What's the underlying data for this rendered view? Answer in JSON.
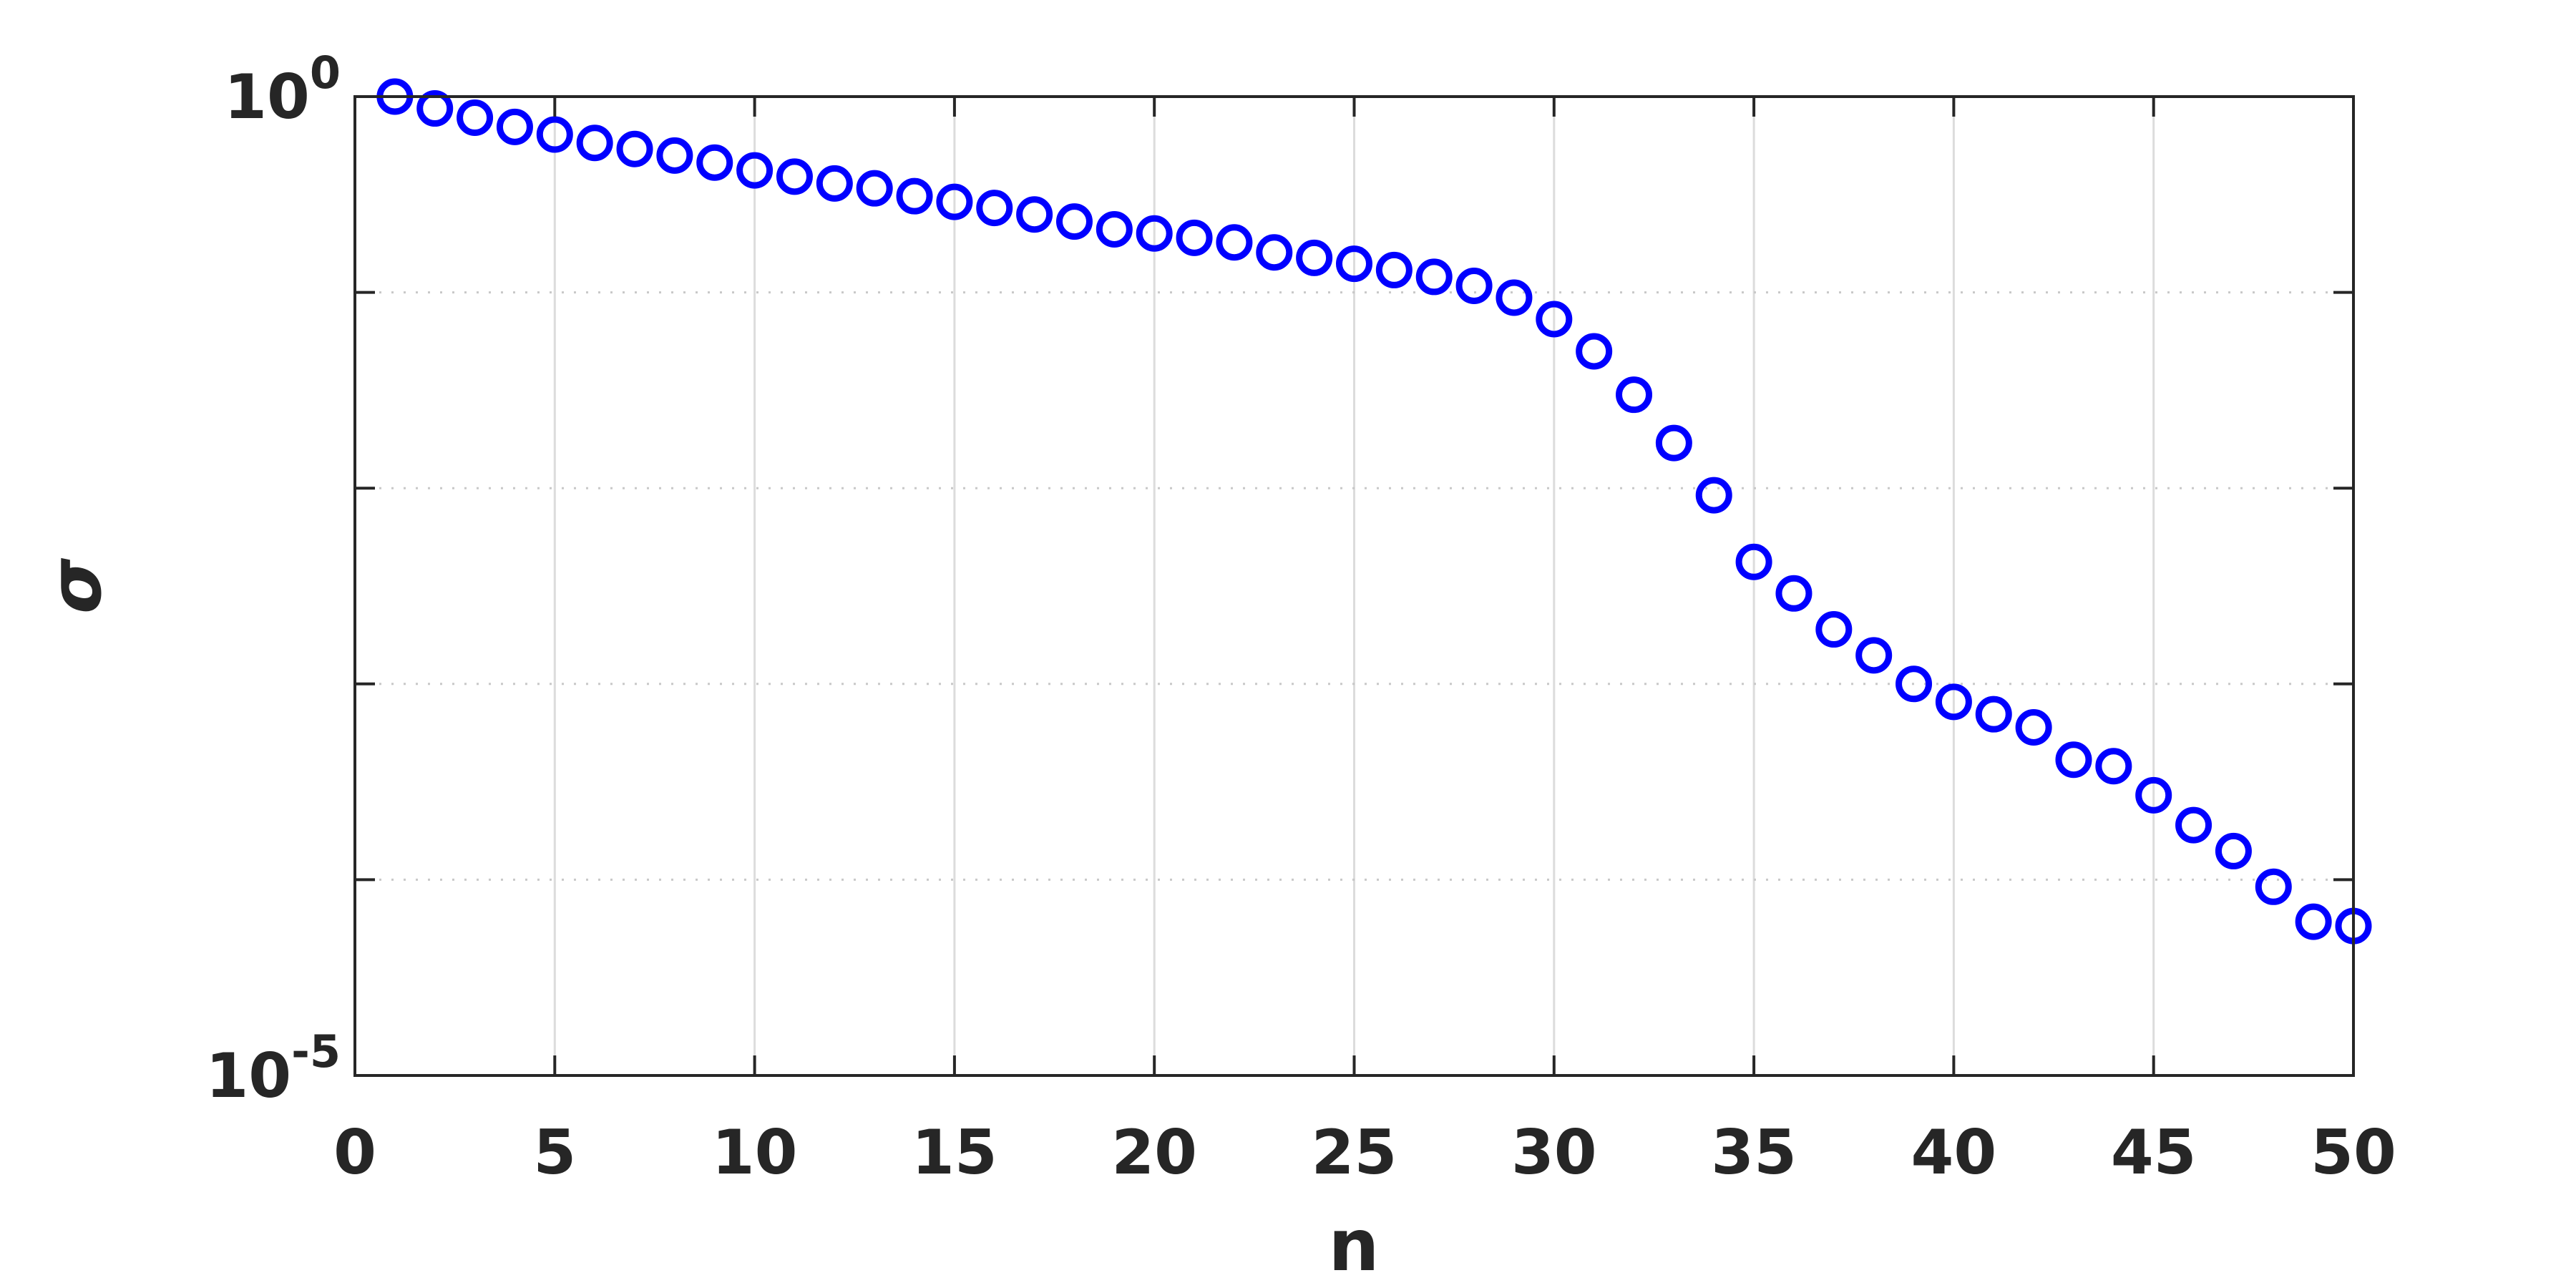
{
  "chart_data": {
    "type": "scatter",
    "xlabel": "n",
    "ylabel": "σ",
    "x": [
      1,
      2,
      3,
      4,
      5,
      6,
      7,
      8,
      9,
      10,
      11,
      12,
      13,
      14,
      15,
      16,
      17,
      18,
      19,
      20,
      21,
      22,
      23,
      24,
      25,
      26,
      27,
      28,
      29,
      30,
      31,
      32,
      33,
      34,
      35,
      36,
      37,
      38,
      39,
      40,
      41,
      42,
      43,
      44,
      45,
      46,
      47,
      48,
      49,
      50
    ],
    "series": [
      {
        "color": "#0000ff",
        "values": [
          1.0,
          0.87,
          0.78,
          0.7,
          0.64,
          0.58,
          0.54,
          0.5,
          0.46,
          0.42,
          0.39,
          0.36,
          0.34,
          0.31,
          0.29,
          0.27,
          0.25,
          0.23,
          0.21,
          0.2,
          0.19,
          0.18,
          0.16,
          0.15,
          0.14,
          0.13,
          0.12,
          0.108,
          0.094,
          0.073,
          0.05,
          0.03,
          0.017,
          0.0092,
          0.0042,
          0.0029,
          0.0019,
          0.0014,
          0.001,
          0.00081,
          0.0007,
          0.0006,
          0.00041,
          0.00038,
          0.00027,
          0.00019,
          0.00014,
          9.2e-05,
          6.1e-05,
          5.8e-05
        ]
      }
    ],
    "xlim": [
      0,
      50
    ],
    "xticks": [
      0,
      5,
      10,
      15,
      20,
      25,
      30,
      35,
      40,
      45,
      50
    ],
    "ylim": [
      1e-05,
      1
    ],
    "ylog": true,
    "yticks": [
      {
        "value": 1e-05,
        "label": "10",
        "exponent": "-5"
      },
      {
        "value": 1,
        "label": "10",
        "exponent": "0"
      }
    ],
    "yminor": [
      0.0001,
      0.001,
      0.01,
      0.1
    ],
    "grid": true
  }
}
